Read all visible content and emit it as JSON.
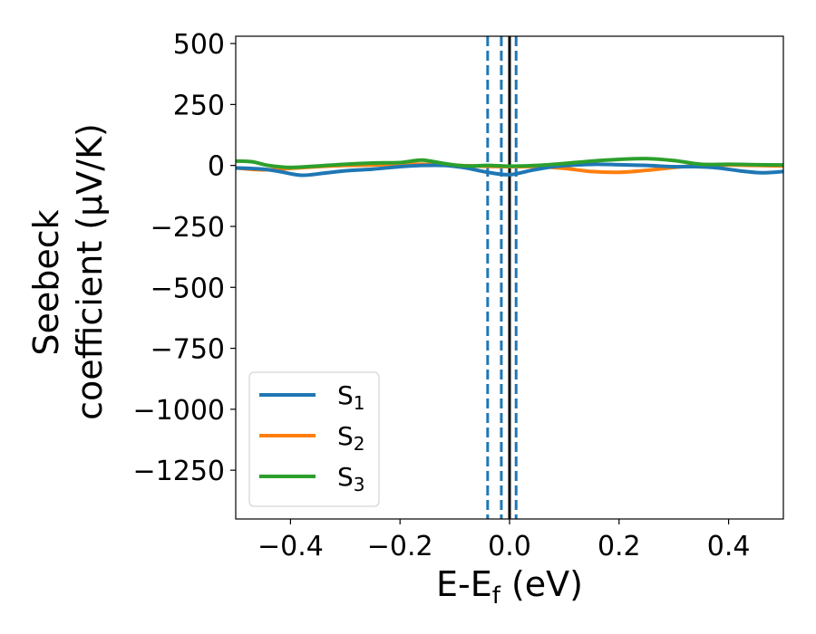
{
  "chart_data": {
    "type": "line",
    "xlabel_main": "E-E",
    "xlabel_sub": "f",
    "xlabel_unit": " (eV)",
    "ylabel_line1": "Seebeck",
    "ylabel_line2": "coefficient  (μV/K)",
    "xlim": [
      -0.5,
      0.5
    ],
    "ylim": [
      -1450,
      530
    ],
    "xticks": [
      -0.4,
      -0.2,
      0.0,
      0.2,
      0.4
    ],
    "xtick_labels": [
      "−0.4",
      "−0.2",
      "0.0",
      "0.2",
      "0.4"
    ],
    "yticks": [
      500,
      250,
      0,
      -250,
      -500,
      -750,
      -1000,
      -1250
    ],
    "ytick_labels": [
      "500",
      "250",
      "0",
      "−250",
      "−500",
      "−750",
      "−1000",
      "−1250"
    ],
    "grid": false,
    "legend_position": "lower-left",
    "vlines": [
      {
        "x": -0.04,
        "style": "dashed",
        "color": "#1f77b4"
      },
      {
        "x": -0.015,
        "style": "dashed",
        "color": "#1f77b4"
      },
      {
        "x": 0.012,
        "style": "dashed",
        "color": "#1f77b4"
      },
      {
        "x": 0.0,
        "style": "solid",
        "color": "#000000"
      }
    ],
    "series": [
      {
        "name": "S",
        "name_sub": "1",
        "color": "#1f77b4",
        "x": [
          -0.5,
          -0.45,
          -0.42,
          -0.38,
          -0.34,
          -0.3,
          -0.25,
          -0.2,
          -0.16,
          -0.12,
          -0.08,
          -0.04,
          0.0,
          0.04,
          0.08,
          0.12,
          0.16,
          0.2,
          0.25,
          0.3,
          0.34,
          0.38,
          0.42,
          0.46,
          0.5
        ],
        "y": [
          -10,
          -15,
          -25,
          -40,
          -32,
          -22,
          -15,
          -5,
          0,
          0,
          -10,
          -28,
          -38,
          -20,
          -5,
          2,
          5,
          3,
          0,
          -5,
          -5,
          -10,
          -22,
          -30,
          -25
        ]
      },
      {
        "name": "S",
        "name_sub": "2",
        "color": "#ff7f0e",
        "x": [
          -0.5,
          -0.45,
          -0.4,
          -0.35,
          -0.3,
          -0.25,
          -0.2,
          -0.15,
          -0.1,
          -0.05,
          0.0,
          0.05,
          0.1,
          0.15,
          0.2,
          0.25,
          0.3,
          0.35,
          0.4,
          0.45,
          0.5
        ],
        "y": [
          -10,
          -18,
          -12,
          -5,
          0,
          2,
          5,
          5,
          0,
          -3,
          -5,
          -5,
          -12,
          -25,
          -28,
          -20,
          -8,
          0,
          2,
          0,
          -2
        ]
      },
      {
        "name": "S",
        "name_sub": "3",
        "color": "#2ca02c",
        "x": [
          -0.5,
          -0.47,
          -0.44,
          -0.4,
          -0.35,
          -0.3,
          -0.25,
          -0.2,
          -0.16,
          -0.12,
          -0.08,
          -0.04,
          0.0,
          0.05,
          0.1,
          0.15,
          0.2,
          0.25,
          0.3,
          0.35,
          0.4,
          0.45,
          0.5
        ],
        "y": [
          18,
          15,
          0,
          -8,
          -2,
          5,
          10,
          12,
          22,
          8,
          -2,
          0,
          -3,
          0,
          8,
          18,
          25,
          28,
          20,
          5,
          5,
          3,
          2
        ]
      }
    ]
  }
}
